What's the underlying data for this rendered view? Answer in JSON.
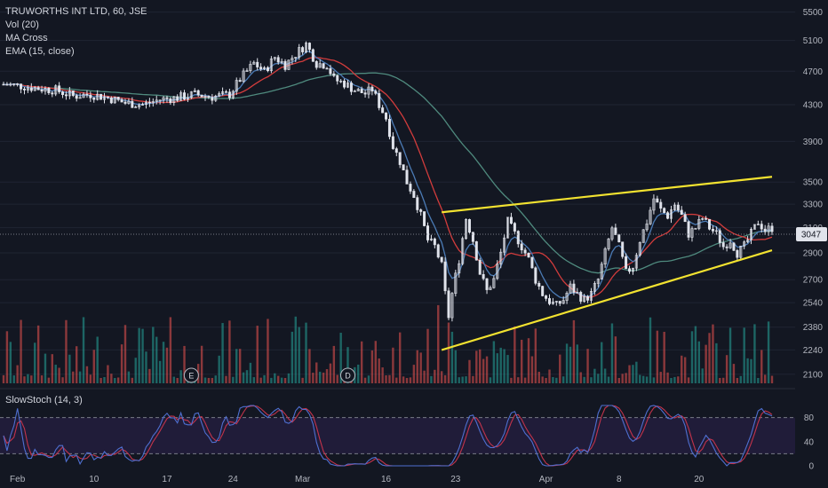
{
  "legend": {
    "symbol": "TRUWORTHS INT LTD, 60, JSE",
    "vol": "Vol (20)",
    "ma_cross": "MA Cross",
    "ema": "EMA (15, close)"
  },
  "stoch_legend": "SlowStoch (14, 3)",
  "colors": {
    "background": "#131722",
    "up": "#e0e3eb",
    "down": "#e0e3eb",
    "vol_up": "#26a69a",
    "vol_down": "#ef5350",
    "ema": "#4b7bb5",
    "ma_fast": "#d23c3c",
    "ma_slow": "#4f8a7e",
    "trendline": "#f2e230",
    "stoch_k": "#4f6fd0",
    "stoch_d": "#c2334b",
    "current_tag": "#e0e3eb"
  },
  "chart_data": {
    "type": "candlestick",
    "title": "TRUWORTHS INT LTD, 60, JSE",
    "y_scale": "log",
    "ylim": [
      2050,
      5600
    ],
    "y_ticks": [
      "5500",
      "5100",
      "4700",
      "4300",
      "3900",
      "3500",
      "3300",
      "3100",
      "2900",
      "2700",
      "2540",
      "2380",
      "2240",
      "2100"
    ],
    "x_ticks": [
      "Feb",
      "10",
      "17",
      "24",
      "Mar",
      "16",
      "23",
      "Apr",
      "8",
      "20"
    ],
    "current_price": "3047",
    "price_path": [
      [
        0,
        4540
      ],
      [
        5,
        4520
      ],
      [
        10,
        4490
      ],
      [
        15,
        4470
      ],
      [
        20,
        4400
      ],
      [
        25,
        4420
      ],
      [
        30,
        4380
      ],
      [
        35,
        4320
      ],
      [
        40,
        4300
      ],
      [
        45,
        4360
      ],
      [
        50,
        4380
      ],
      [
        55,
        4420
      ],
      [
        60,
        4390
      ],
      [
        65,
        4420
      ],
      [
        68,
        4600
      ],
      [
        72,
        4800
      ],
      [
        75,
        4700
      ],
      [
        78,
        4880
      ],
      [
        81,
        4780
      ],
      [
        84,
        4920
      ],
      [
        87,
        5050
      ],
      [
        90,
        4800
      ],
      [
        93,
        4780
      ],
      [
        95,
        4600
      ],
      [
        98,
        4550
      ],
      [
        101,
        4470
      ],
      [
        104,
        4430
      ],
      [
        106,
        4480
      ],
      [
        108,
        4300
      ],
      [
        110,
        4150
      ],
      [
        112,
        3850
      ],
      [
        114,
        3700
      ],
      [
        116,
        3500
      ],
      [
        118,
        3380
      ],
      [
        120,
        3200
      ],
      [
        122,
        3000
      ],
      [
        124,
        2950
      ],
      [
        126,
        2800
      ],
      [
        127,
        2600
      ],
      [
        128,
        2450
      ],
      [
        129,
        2600
      ],
      [
        131,
        2850
      ],
      [
        133,
        3180
      ],
      [
        135,
        3000
      ],
      [
        137,
        2750
      ],
      [
        139,
        2620
      ],
      [
        141,
        2700
      ],
      [
        143,
        2900
      ],
      [
        145,
        3150
      ],
      [
        147,
        3050
      ],
      [
        149,
        2950
      ],
      [
        151,
        2850
      ],
      [
        153,
        2700
      ],
      [
        155,
        2600
      ],
      [
        157,
        2550
      ],
      [
        159,
        2520
      ],
      [
        161,
        2560
      ],
      [
        163,
        2650
      ],
      [
        165,
        2600
      ],
      [
        167,
        2560
      ],
      [
        169,
        2600
      ],
      [
        171,
        2700
      ],
      [
        173,
        2900
      ],
      [
        175,
        3100
      ],
      [
        177,
        2950
      ],
      [
        179,
        2750
      ],
      [
        181,
        2800
      ],
      [
        183,
        3000
      ],
      [
        185,
        3150
      ],
      [
        187,
        3350
      ],
      [
        189,
        3250
      ],
      [
        191,
        3200
      ],
      [
        193,
        3300
      ],
      [
        195,
        3200
      ],
      [
        197,
        3050
      ],
      [
        199,
        3100
      ],
      [
        201,
        3180
      ],
      [
        203,
        3100
      ],
      [
        205,
        3050
      ],
      [
        207,
        2950
      ],
      [
        209,
        3000
      ],
      [
        211,
        2900
      ],
      [
        213,
        2950
      ],
      [
        215,
        3050
      ],
      [
        217,
        3150
      ],
      [
        219,
        3080
      ],
      [
        221,
        3100
      ]
    ],
    "trendlines": [
      {
        "from": [
          126,
          3230
        ],
        "to": [
          221,
          3550
        ]
      },
      {
        "from": [
          126,
          2240
        ],
        "to": [
          221,
          2920
        ]
      }
    ],
    "stoch_range": [
      0,
      100
    ],
    "stoch_ticks": [
      "80",
      "40",
      "0"
    ],
    "stoch_levels": [
      80,
      20
    ],
    "events": [
      {
        "label": "E",
        "x": 54
      },
      {
        "label": "D",
        "x": 99
      }
    ]
  }
}
